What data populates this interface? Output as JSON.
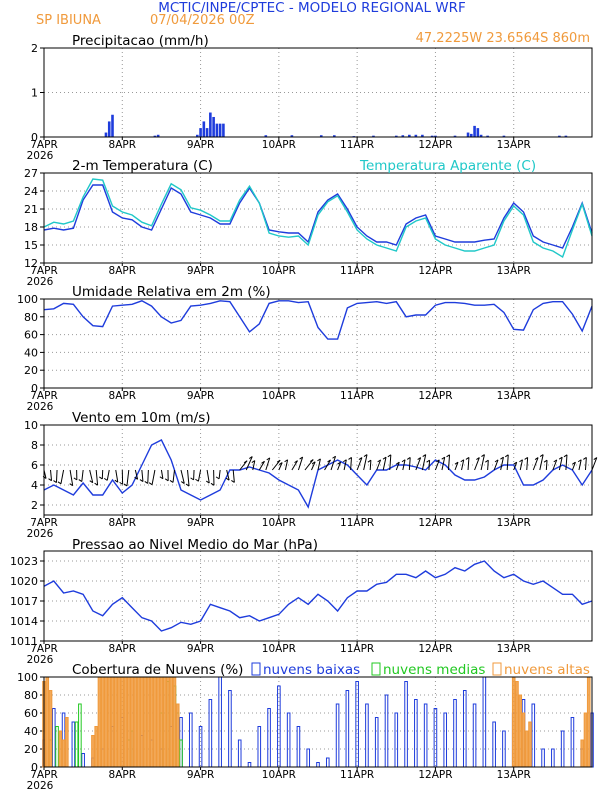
{
  "header": {
    "title": "MCTIC/INPE/CPTEC - MODELO REGIONAL WRF",
    "location": "SP IBIUNA",
    "run": "07/04/2026 00Z",
    "coords": "47.2225W 23.6564S 860m"
  },
  "colors": {
    "blue": "#1e3cdc",
    "cyan": "#20c8c8",
    "orange": "#f09a3c",
    "green": "#22c822",
    "black": "#000000"
  },
  "x_axis": {
    "labels": [
      "7APR",
      "8APR",
      "9APR",
      "10APR",
      "11APR",
      "12APR",
      "13APR"
    ],
    "year": "2026",
    "range_hours": [
      0,
      168
    ]
  },
  "chart_data": [
    {
      "id": "precip",
      "type": "bar",
      "title": "Precipitacao (mm/h)",
      "ylim": [
        0,
        2
      ],
      "yticks": [
        "0",
        "1",
        "2"
      ],
      "series": [
        {
          "color": "blue",
          "x": [
            19,
            20,
            21,
            34,
            35,
            47,
            48,
            49,
            50,
            51,
            52,
            53,
            54,
            55,
            68,
            76,
            85,
            89,
            95,
            101,
            108,
            110,
            112,
            114,
            116,
            119,
            120,
            126,
            130,
            131,
            132,
            133,
            134,
            136,
            141,
            158,
            160
          ],
          "values": [
            0.1,
            0.35,
            0.5,
            0.03,
            0.05,
            0.05,
            0.2,
            0.35,
            0.2,
            0.55,
            0.45,
            0.3,
            0.3,
            0.3,
            0.04,
            0.04,
            0.04,
            0.04,
            0.02,
            0.03,
            0.03,
            0.04,
            0.05,
            0.05,
            0.05,
            0.03,
            0.03,
            0.03,
            0.1,
            0.07,
            0.25,
            0.2,
            0.05,
            0.03,
            0.03,
            0.03,
            0.03
          ]
        }
      ]
    },
    {
      "id": "temp",
      "type": "line",
      "title": "2-m Temperatura (C)",
      "ylim": [
        12,
        27
      ],
      "yticks": [
        "12",
        "15",
        "18",
        "21",
        "24",
        "27"
      ],
      "series": [
        {
          "name": "2-m Temperatura (C)",
          "color": "blue",
          "x": [
            0,
            3,
            6,
            9,
            12,
            15,
            18,
            21,
            24,
            27,
            30,
            33,
            36,
            39,
            42,
            45,
            48,
            51,
            54,
            57,
            60,
            63,
            66,
            69,
            72,
            75,
            78,
            81,
            84,
            87,
            90,
            93,
            96,
            99,
            102,
            105,
            108,
            111,
            114,
            117,
            120,
            123,
            126,
            129,
            132,
            135,
            138,
            141,
            144,
            147,
            150,
            153,
            156,
            159,
            162,
            165,
            168
          ],
          "values": [
            17.5,
            17.8,
            17.5,
            17.8,
            22.5,
            25.0,
            25.0,
            20.5,
            19.5,
            19.2,
            18.0,
            17.5,
            21.0,
            24.5,
            23.5,
            20.5,
            20.0,
            19.5,
            18.5,
            18.5,
            22.0,
            24.5,
            22.0,
            17.5,
            17.2,
            17.0,
            17.0,
            15.5,
            20.5,
            22.5,
            23.5,
            21.0,
            18.0,
            16.5,
            15.5,
            15.5,
            15.0,
            18.5,
            19.5,
            20.0,
            16.5,
            16.0,
            15.5,
            15.5,
            15.5,
            15.8,
            16.0,
            19.5,
            22.0,
            20.5,
            16.5,
            15.5,
            15.0,
            14.5,
            18.0,
            22.0,
            17.0
          ]
        },
        {
          "name": "Temperatura Aparente (C)",
          "color": "cyan",
          "x": [
            0,
            3,
            6,
            9,
            12,
            15,
            18,
            21,
            24,
            27,
            30,
            33,
            36,
            39,
            42,
            45,
            48,
            51,
            54,
            57,
            60,
            63,
            66,
            69,
            72,
            75,
            78,
            81,
            84,
            87,
            90,
            93,
            96,
            99,
            102,
            105,
            108,
            111,
            114,
            117,
            120,
            123,
            126,
            129,
            132,
            135,
            138,
            141,
            144,
            147,
            150,
            153,
            156,
            159,
            162,
            165,
            168
          ],
          "values": [
            18.0,
            18.8,
            18.5,
            19.0,
            23.0,
            26.0,
            25.8,
            21.5,
            20.5,
            20.0,
            18.8,
            18.2,
            21.8,
            25.2,
            24.2,
            21.2,
            20.8,
            20.0,
            19.0,
            19.0,
            22.5,
            24.8,
            22.0,
            17.0,
            16.5,
            16.3,
            16.5,
            15.0,
            20.0,
            22.2,
            23.2,
            20.5,
            17.5,
            16.0,
            15.0,
            14.5,
            14.0,
            18.0,
            19.0,
            19.5,
            16.0,
            15.0,
            14.5,
            14.0,
            14.0,
            14.5,
            15.0,
            19.0,
            21.5,
            20.0,
            15.5,
            14.5,
            14.0,
            13.0,
            17.5,
            21.8,
            16.5
          ]
        }
      ]
    },
    {
      "id": "rh",
      "type": "line",
      "title": "Umidade Relativa em 2m (%)",
      "ylim": [
        0,
        100
      ],
      "yticks": [
        "0",
        "20",
        "40",
        "60",
        "80",
        "100"
      ],
      "series": [
        {
          "color": "blue",
          "x": [
            0,
            3,
            6,
            9,
            12,
            15,
            18,
            21,
            24,
            27,
            30,
            33,
            36,
            39,
            42,
            45,
            48,
            51,
            54,
            57,
            60,
            63,
            66,
            69,
            72,
            75,
            78,
            81,
            84,
            87,
            90,
            93,
            96,
            99,
            102,
            105,
            108,
            111,
            114,
            117,
            120,
            123,
            126,
            129,
            132,
            135,
            138,
            141,
            144,
            147,
            150,
            153,
            156,
            159,
            162,
            165,
            168
          ],
          "values": [
            88,
            89,
            95,
            94,
            80,
            70,
            69,
            92,
            93,
            94,
            98,
            92,
            80,
            73,
            76,
            92,
            93,
            95,
            98,
            97,
            80,
            63,
            72,
            95,
            98,
            98,
            96,
            97,
            68,
            55,
            55,
            90,
            95,
            96,
            97,
            95,
            97,
            80,
            82,
            82,
            93,
            96,
            96,
            95,
            93,
            93,
            94,
            85,
            66,
            65,
            88,
            95,
            97,
            97,
            83,
            64,
            92
          ]
        }
      ]
    },
    {
      "id": "wind",
      "type": "line",
      "title": "Vento em 10m (m/s)",
      "ylim": [
        1,
        10
      ],
      "yticks": [
        "2",
        "4",
        "6",
        "8",
        "10"
      ],
      "series": [
        {
          "color": "blue",
          "x": [
            0,
            3,
            6,
            9,
            12,
            15,
            18,
            21,
            24,
            27,
            30,
            33,
            36,
            39,
            42,
            45,
            48,
            51,
            54,
            57,
            60,
            63,
            66,
            69,
            72,
            75,
            78,
            81,
            84,
            87,
            90,
            93,
            96,
            99,
            102,
            105,
            108,
            111,
            114,
            117,
            120,
            123,
            126,
            129,
            132,
            135,
            138,
            141,
            144,
            147,
            150,
            153,
            156,
            159,
            162,
            165,
            168
          ],
          "values": [
            3.5,
            4.0,
            3.5,
            3.0,
            4.2,
            3.0,
            3.0,
            4.5,
            3.2,
            4.0,
            6.0,
            8.0,
            8.5,
            6.5,
            3.5,
            3.0,
            2.5,
            3.0,
            3.5,
            5.5,
            5.5,
            5.8,
            5.5,
            5.2,
            4.5,
            4.0,
            3.5,
            1.8,
            5.5,
            6.0,
            6.5,
            6.0,
            5.0,
            4.0,
            5.5,
            5.5,
            6.0,
            6.0,
            5.8,
            5.5,
            6.5,
            6.0,
            5.0,
            4.5,
            4.5,
            4.8,
            5.5,
            6.0,
            6.0,
            4.0,
            4.0,
            4.5,
            5.5,
            6.0,
            5.5,
            4.0,
            5.5
          ]
        }
      ],
      "barb_base_value": 5.5
    },
    {
      "id": "press",
      "type": "line",
      "title": "Pressao ao Nivel Medio do Mar (hPa)",
      "ylim": [
        1011,
        1024.5
      ],
      "yticks": [
        "1011",
        "1014",
        "1017",
        "1020",
        "1023"
      ],
      "series": [
        {
          "color": "blue",
          "x": [
            0,
            3,
            6,
            9,
            12,
            15,
            18,
            21,
            24,
            27,
            30,
            33,
            36,
            39,
            42,
            45,
            48,
            51,
            54,
            57,
            60,
            63,
            66,
            69,
            72,
            75,
            78,
            81,
            84,
            87,
            90,
            93,
            96,
            99,
            102,
            105,
            108,
            111,
            114,
            117,
            120,
            123,
            126,
            129,
            132,
            135,
            138,
            141,
            144,
            147,
            150,
            153,
            156,
            159,
            162,
            165,
            168
          ],
          "values": [
            1019.2,
            1020.0,
            1018.2,
            1018.5,
            1018.0,
            1015.5,
            1014.8,
            1016.5,
            1017.5,
            1016.0,
            1014.5,
            1014.0,
            1012.5,
            1013.0,
            1013.8,
            1013.5,
            1014.0,
            1016.5,
            1016.0,
            1015.5,
            1014.5,
            1014.8,
            1014.0,
            1014.5,
            1015.0,
            1016.5,
            1017.5,
            1016.5,
            1018.0,
            1017.0,
            1015.5,
            1017.5,
            1018.5,
            1018.5,
            1019.5,
            1019.8,
            1021.0,
            1021.0,
            1020.5,
            1021.5,
            1020.5,
            1021.0,
            1022.0,
            1021.5,
            1022.5,
            1023.0,
            1021.5,
            1020.5,
            1021.0,
            1020.0,
            1019.5,
            1020.0,
            1019.0,
            1018.0,
            1018.0,
            1016.5,
            1017.0
          ]
        }
      ]
    },
    {
      "id": "clouds",
      "type": "bar",
      "title": "Cobertura de Nuvens (%)",
      "ylim": [
        0,
        100
      ],
      "yticks": [
        "0",
        "20",
        "40",
        "60",
        "80",
        "100"
      ],
      "legend": [
        {
          "label": "nuvens baixas",
          "color": "blue"
        },
        {
          "label": "nuvens medias",
          "color": "green"
        },
        {
          "label": "nuvens altas",
          "color": "orange"
        }
      ],
      "series": [
        {
          "name": "nuvens baixas",
          "color": "blue",
          "x": [
            0,
            3,
            6,
            9,
            12,
            15,
            18,
            21,
            24,
            27,
            30,
            33,
            36,
            39,
            42,
            45,
            48,
            51,
            54,
            57,
            60,
            63,
            66,
            69,
            72,
            75,
            78,
            81,
            84,
            87,
            90,
            93,
            96,
            99,
            102,
            105,
            108,
            111,
            114,
            117,
            120,
            123,
            126,
            129,
            132,
            135,
            138,
            141,
            144,
            147,
            150,
            153,
            156,
            159,
            162,
            165,
            168
          ],
          "values": [
            30,
            65,
            60,
            50,
            15,
            10,
            20,
            45,
            55,
            40,
            35,
            30,
            20,
            45,
            55,
            60,
            45,
            75,
            100,
            85,
            30,
            5,
            45,
            65,
            90,
            60,
            45,
            20,
            5,
            10,
            70,
            85,
            95,
            70,
            55,
            80,
            60,
            95,
            75,
            70,
            65,
            60,
            75,
            85,
            70,
            100,
            50,
            40,
            60,
            75,
            70,
            20,
            20,
            40,
            55,
            20,
            60
          ]
        },
        {
          "name": "nuvens medias",
          "color": "green",
          "x": [
            2,
            4,
            10,
            11,
            26,
            27,
            36,
            37,
            38,
            39,
            40,
            41,
            42
          ],
          "values": [
            30,
            45,
            50,
            70,
            30,
            40,
            60,
            100,
            95,
            100,
            90,
            60,
            30
          ]
        },
        {
          "name": "nuvens altas",
          "color": "orange",
          "x": [
            0,
            1,
            2,
            5,
            6,
            7,
            15,
            16,
            17,
            18,
            19,
            20,
            21,
            22,
            23,
            24,
            25,
            26,
            27,
            28,
            29,
            30,
            31,
            32,
            33,
            34,
            35,
            36,
            37,
            38,
            39,
            40,
            41,
            144,
            145,
            146,
            147,
            148,
            149,
            165,
            166,
            167
          ],
          "values": [
            95,
            100,
            85,
            40,
            30,
            55,
            35,
            45,
            100,
            100,
            100,
            100,
            100,
            100,
            100,
            100,
            100,
            100,
            100,
            100,
            100,
            100,
            100,
            100,
            100,
            100,
            100,
            100,
            100,
            100,
            100,
            100,
            70,
            100,
            95,
            80,
            60,
            40,
            50,
            30,
            60,
            100
          ]
        }
      ]
    }
  ]
}
